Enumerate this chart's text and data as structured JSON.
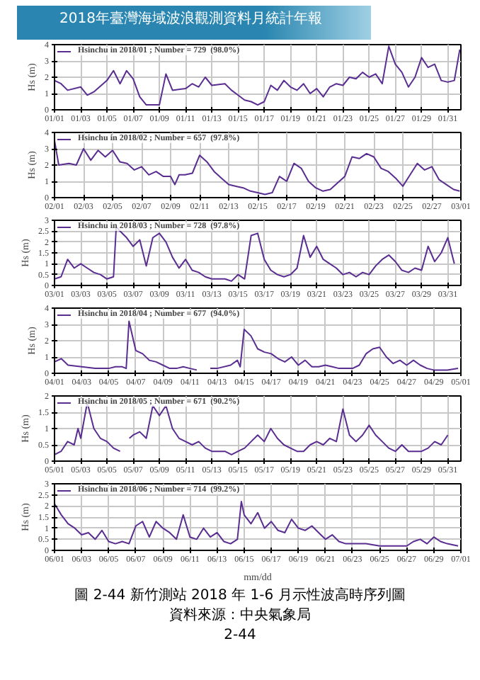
{
  "chart_data": [
    {
      "type": "line",
      "title": "2018年臺灣海域波浪觀測資料月統計年報",
      "ylabel": "Hs (m)",
      "xlim": [
        "2018-01-01",
        "2018-02-01"
      ],
      "ylim": [
        0,
        4
      ],
      "yticks": [
        0,
        1,
        2,
        3,
        4
      ],
      "xticks": [
        {
          "value": "2018-01-01",
          "label": "01/01"
        },
        {
          "value": "2018-01-03",
          "label": "01/03"
        },
        {
          "value": "2018-01-05",
          "label": "01/05"
        },
        {
          "value": "2018-01-07",
          "label": "01/07"
        },
        {
          "value": "2018-01-09",
          "label": "01/09"
        },
        {
          "value": "2018-01-11",
          "label": "01/11"
        },
        {
          "value": "2018-01-13",
          "label": "01/13"
        },
        {
          "value": "2018-01-15",
          "label": "01/15"
        },
        {
          "value": "2018-01-17",
          "label": "01/17"
        },
        {
          "value": "2018-01-19",
          "label": "01/19"
        },
        {
          "value": "2018-01-21",
          "label": "01/21"
        },
        {
          "value": "2018-01-23",
          "label": "01/23"
        },
        {
          "value": "2018-01-25",
          "label": "01/25"
        },
        {
          "value": "2018-01-27",
          "label": "01/27"
        },
        {
          "value": "2018-01-29",
          "label": "01/29"
        },
        {
          "value": "2018-01-31",
          "label": "01/31"
        }
      ],
      "grid": true,
      "legend": "top left",
      "line_style": "solid",
      "series": [
        {
          "name": "Hsinchu in 2018/01 ; Number = 729  (98.0%)",
          "color": "#5a2d91",
          "x": [
            "2018-01-01T00:00",
            "2018-01-01T12:00",
            "2018-01-02T00:00",
            "2018-01-03T00:00",
            "2018-01-03T12:00",
            "2018-01-04T00:00",
            "2018-01-05T00:00",
            "2018-01-05T12:00",
            "2018-01-06T00:00",
            "2018-01-06T12:00",
            "2018-01-07T00:00",
            "2018-01-07T12:00",
            "2018-01-08T00:00",
            "2018-01-08T12:00",
            "2018-01-09T00:00",
            "2018-01-09T12:00",
            "2018-01-10T00:00",
            "2018-01-11T00:00",
            "2018-01-11T12:00",
            "2018-01-12T00:00",
            "2018-01-12T12:00",
            "2018-01-13T00:00",
            "2018-01-14T00:00",
            "2018-01-14T12:00",
            "2018-01-15T00:00",
            "2018-01-15T12:00",
            "2018-01-16T00:00",
            "2018-01-16T12:00",
            "2018-01-17T00:00",
            "2018-01-17T12:00",
            "2018-01-18T00:00",
            "2018-01-18T12:00",
            "2018-01-19T00:00",
            "2018-01-19T12:00",
            "2018-01-20T00:00",
            "2018-01-20T12:00",
            "2018-01-21T00:00",
            "2018-01-21T12:00",
            "2018-01-22T00:00",
            "2018-01-22T12:00",
            "2018-01-23T00:00",
            "2018-01-23T12:00",
            "2018-01-24T00:00",
            "2018-01-24T12:00",
            "2018-01-25T00:00",
            "2018-01-25T12:00",
            "2018-01-26T00:00",
            "2018-01-26T12:00",
            "2018-01-27T00:00",
            "2018-01-27T12:00",
            "2018-01-28T00:00",
            "2018-01-28T12:00",
            "2018-01-29T00:00",
            "2018-01-29T12:00",
            "2018-01-30T00:00",
            "2018-01-30T12:00",
            "2018-01-31T00:00",
            "2018-01-31T12:00",
            "2018-01-31T22:00"
          ],
          "values": [
            1.8,
            1.6,
            1.2,
            1.4,
            0.9,
            1.1,
            1.8,
            2.4,
            1.6,
            2.4,
            1.9,
            0.8,
            0.3,
            0.3,
            0.3,
            2.2,
            1.2,
            1.3,
            1.6,
            1.4,
            2.0,
            1.5,
            1.6,
            1.2,
            0.9,
            0.6,
            0.5,
            0.3,
            0.5,
            1.5,
            1.2,
            1.8,
            1.4,
            1.2,
            1.6,
            1.0,
            1.3,
            0.8,
            1.4,
            1.6,
            1.5,
            2.0,
            1.9,
            2.3,
            2.0,
            2.2,
            1.6,
            3.9,
            2.8,
            2.3,
            1.4,
            2.0,
            3.2,
            2.6,
            2.8,
            1.8,
            1.7,
            1.8,
            3.7
          ]
        }
      ]
    },
    {
      "type": "line",
      "ylabel": "Hs (m)",
      "xlim": [
        "2018-02-01",
        "2018-03-01"
      ],
      "ylim": [
        0,
        4
      ],
      "yticks": [
        0,
        1,
        2,
        3,
        4
      ],
      "xticks": [
        {
          "value": "2018-02-01",
          "label": "02/01"
        },
        {
          "value": "2018-02-03",
          "label": "02/03"
        },
        {
          "value": "2018-02-05",
          "label": "02/05"
        },
        {
          "value": "2018-02-07",
          "label": "02/07"
        },
        {
          "value": "2018-02-09",
          "label": "02/09"
        },
        {
          "value": "2018-02-11",
          "label": "02/11"
        },
        {
          "value": "2018-02-13",
          "label": "02/13"
        },
        {
          "value": "2018-02-15",
          "label": "02/15"
        },
        {
          "value": "2018-02-17",
          "label": "02/17"
        },
        {
          "value": "2018-02-19",
          "label": "02/19"
        },
        {
          "value": "2018-02-21",
          "label": "02/21"
        },
        {
          "value": "2018-02-23",
          "label": "02/23"
        },
        {
          "value": "2018-02-25",
          "label": "02/25"
        },
        {
          "value": "2018-02-27",
          "label": "02/27"
        },
        {
          "value": "2018-03-01",
          "label": "03/01"
        }
      ],
      "grid": true,
      "legend": "top left",
      "line_style": "solid",
      "series": [
        {
          "name": "Hsinchu in 2018/02 ; Number = 657  (97.8%)",
          "color": "#5a2d91",
          "x": [
            "2018-02-01T00:00",
            "2018-02-01T07:00",
            "2018-02-02T00:00",
            "2018-02-02T12:00",
            "2018-02-03T00:00",
            "2018-02-03T12:00",
            "2018-02-04T00:00",
            "2018-02-04T12:00",
            "2018-02-05T00:00",
            "2018-02-05T12:00",
            "2018-02-06T00:00",
            "2018-02-06T12:00",
            "2018-02-07T00:00",
            "2018-02-07T12:00",
            "2018-02-08T00:00",
            "2018-02-08T12:00",
            "2018-02-09T00:00",
            "2018-02-09T07:00",
            "2018-02-09T14:00",
            "2018-02-10T00:00",
            "2018-02-10T12:00",
            "2018-02-11T00:00",
            "2018-02-11T12:00",
            "2018-02-12T00:00",
            "2018-02-12T12:00",
            "2018-02-13T00:00",
            "2018-02-13T12:00",
            "2018-02-14T00:00",
            "2018-02-14T12:00",
            "2018-02-15T00:00",
            "2018-02-15T12:00",
            "2018-02-16T00:00",
            "2018-02-16T12:00",
            "2018-02-17T00:00",
            "2018-02-17T12:00",
            "2018-02-18T00:00",
            "2018-02-18T12:00",
            "2018-02-19T00:00",
            "2018-02-19T12:00",
            "2018-02-20T00:00",
            "2018-02-20T12:00",
            "2018-02-21T00:00",
            "2018-02-21T12:00",
            "2018-02-22T00:00",
            "2018-02-22T12:00",
            "2018-02-23T00:00",
            "2018-02-23T12:00",
            "2018-02-24T00:00",
            "2018-02-24T12:00",
            "2018-02-25T00:00",
            "2018-02-25T12:00",
            "2018-02-26T00:00",
            "2018-02-26T12:00",
            "2018-02-27T00:00",
            "2018-02-27T12:00",
            "2018-02-28T00:00",
            "2018-02-28T12:00",
            "2018-02-28T22:00"
          ],
          "values": [
            3.5,
            2.0,
            2.1,
            2.0,
            3.0,
            2.3,
            2.9,
            2.5,
            2.9,
            2.2,
            2.1,
            1.7,
            1.9,
            1.4,
            1.6,
            1.3,
            1.3,
            0.8,
            1.4,
            1.4,
            1.5,
            2.6,
            2.2,
            1.6,
            1.2,
            0.8,
            0.7,
            0.6,
            0.4,
            0.3,
            0.2,
            0.3,
            1.3,
            1.0,
            2.1,
            1.8,
            1.0,
            0.6,
            0.4,
            0.5,
            0.9,
            1.3,
            2.5,
            2.4,
            2.7,
            2.5,
            1.8,
            1.6,
            1.2,
            0.7,
            1.4,
            2.1,
            1.7,
            1.9,
            1.1,
            0.8,
            0.5,
            0.4
          ]
        }
      ]
    },
    {
      "type": "line",
      "ylabel": "Hs (m)",
      "xlim": [
        "2018-03-01",
        "2018-04-01"
      ],
      "ylim": [
        0,
        3
      ],
      "yticks": [
        0,
        0.5,
        1,
        1.5,
        2,
        2.5,
        3
      ],
      "xticks": [
        {
          "value": "2018-03-01",
          "label": "03/01"
        },
        {
          "value": "2018-03-03",
          "label": "03/03"
        },
        {
          "value": "2018-03-05",
          "label": "03/05"
        },
        {
          "value": "2018-03-07",
          "label": "03/07"
        },
        {
          "value": "2018-03-09",
          "label": "03/09"
        },
        {
          "value": "2018-03-11",
          "label": "03/11"
        },
        {
          "value": "2018-03-13",
          "label": "03/13"
        },
        {
          "value": "2018-03-15",
          "label": "03/15"
        },
        {
          "value": "2018-03-17",
          "label": "03/17"
        },
        {
          "value": "2018-03-19",
          "label": "03/19"
        },
        {
          "value": "2018-03-21",
          "label": "03/21"
        },
        {
          "value": "2018-03-23",
          "label": "03/23"
        },
        {
          "value": "2018-03-25",
          "label": "03/25"
        },
        {
          "value": "2018-03-27",
          "label": "03/27"
        },
        {
          "value": "2018-03-29",
          "label": "03/29"
        },
        {
          "value": "2018-03-31",
          "label": "03/31"
        }
      ],
      "grid": true,
      "legend": "top left",
      "line_style": "solid",
      "series": [
        {
          "name": "Hsinchu in 2018/03 ; Number = 728  (97.8%)",
          "color": "#5a2d91",
          "x": [
            "2018-03-01T00:00",
            "2018-03-01T12:00",
            "2018-03-02T00:00",
            "2018-03-02T12:00",
            "2018-03-03T00:00",
            "2018-03-03T12:00",
            "2018-03-04T00:00",
            "2018-03-04T12:00",
            "2018-03-05T00:00",
            "2018-03-05T12:00",
            "2018-03-05T17:00",
            "2018-03-06T00:00",
            "2018-03-06T12:00",
            "2018-03-07T00:00",
            "2018-03-07T12:00",
            "2018-03-08T00:00",
            "2018-03-08T12:00",
            "2018-03-09T00:00",
            "2018-03-09T12:00",
            "2018-03-10T00:00",
            "2018-03-10T12:00",
            "2018-03-11T00:00",
            "2018-03-11T12:00",
            "2018-03-12T00:00",
            "2018-03-12T12:00",
            "2018-03-13T00:00",
            "2018-03-13T12:00",
            "2018-03-14T00:00",
            "2018-03-14T12:00",
            "2018-03-15T00:00",
            "2018-03-15T12:00",
            "2018-03-16T00:00",
            "2018-03-16T12:00",
            "2018-03-17T00:00",
            "2018-03-17T12:00",
            "2018-03-18T00:00",
            "2018-03-18T12:00",
            "2018-03-19T00:00",
            "2018-03-19T12:00",
            "2018-03-20T00:00",
            "2018-03-20T12:00",
            "2018-03-21T00:00",
            "2018-03-21T12:00",
            "2018-03-22T00:00",
            "2018-03-22T12:00",
            "2018-03-23T00:00",
            "2018-03-23T12:00",
            "2018-03-24T00:00",
            "2018-03-24T12:00",
            "2018-03-25T00:00",
            "2018-03-25T12:00",
            "2018-03-26T00:00",
            "2018-03-26T12:00",
            "2018-03-27T00:00",
            "2018-03-27T12:00",
            "2018-03-28T00:00",
            "2018-03-28T12:00",
            "2018-03-29T00:00",
            "2018-03-29T12:00",
            "2018-03-30T00:00",
            "2018-03-30T12:00",
            "2018-03-31T00:00",
            "2018-03-31T12:00"
          ],
          "values": [
            0.3,
            0.4,
            1.2,
            0.8,
            1.0,
            0.8,
            0.6,
            0.5,
            0.3,
            0.4,
            2.7,
            2.5,
            2.2,
            1.8,
            2.1,
            0.9,
            2.2,
            2.4,
            2.0,
            1.3,
            0.8,
            1.2,
            0.7,
            0.6,
            0.4,
            0.3,
            0.3,
            0.3,
            0.2,
            0.5,
            0.3,
            2.3,
            2.4,
            1.2,
            0.7,
            0.5,
            0.4,
            0.5,
            0.8,
            2.3,
            1.3,
            1.8,
            1.2,
            1.0,
            0.8,
            0.5,
            0.6,
            0.4,
            0.6,
            0.5,
            0.9,
            1.2,
            1.4,
            1.1,
            0.7,
            0.6,
            0.8,
            0.7,
            1.8,
            1.1,
            1.5,
            2.2,
            1.0
          ]
        }
      ]
    },
    {
      "type": "line",
      "ylabel": "Hs (m)",
      "xlim": [
        "2018-04-01",
        "2018-05-01"
      ],
      "ylim": [
        0,
        4
      ],
      "yticks": [
        0,
        1,
        2,
        3,
        4
      ],
      "xticks": [
        {
          "value": "2018-04-01",
          "label": "04/01"
        },
        {
          "value": "2018-04-03",
          "label": "04/03"
        },
        {
          "value": "2018-04-05",
          "label": "04/05"
        },
        {
          "value": "2018-04-07",
          "label": "04/07"
        },
        {
          "value": "2018-04-09",
          "label": "04/09"
        },
        {
          "value": "2018-04-11",
          "label": "04/11"
        },
        {
          "value": "2018-04-13",
          "label": "04/13"
        },
        {
          "value": "2018-04-15",
          "label": "04/15"
        },
        {
          "value": "2018-04-17",
          "label": "04/17"
        },
        {
          "value": "2018-04-19",
          "label": "04/19"
        },
        {
          "value": "2018-04-21",
          "label": "04/21"
        },
        {
          "value": "2018-04-23",
          "label": "04/23"
        },
        {
          "value": "2018-04-25",
          "label": "04/25"
        },
        {
          "value": "2018-04-27",
          "label": "04/27"
        },
        {
          "value": "2018-04-29",
          "label": "04/29"
        },
        {
          "value": "2018-05-01",
          "label": "05/01"
        }
      ],
      "grid": true,
      "legend": "top left",
      "line_style": "solid",
      "series": [
        {
          "name": "Hsinchu in 2018/04 ; Number = 677  (94.0%)",
          "color": "#5a2d91",
          "x": [
            "2018-04-01T00:00",
            "2018-04-01T12:00",
            "2018-04-02T00:00",
            "2018-04-03T00:00",
            "2018-04-04T00:00",
            "2018-04-05T00:00",
            "2018-04-05T12:00",
            "2018-04-06T00:00",
            "2018-04-06T07:00",
            "2018-04-06T12:00",
            "2018-04-07T00:00",
            "2018-04-07T12:00",
            "2018-04-08T00:00",
            "2018-04-08T12:00",
            "2018-04-09T00:00",
            "2018-04-09T12:00",
            "2018-04-10T00:00",
            "2018-04-10T12:00",
            "2018-04-11T00:00",
            "2018-04-11T12:00",
            "2018-04-12T00:00",
            "2018-04-12T12:00",
            "2018-04-13T00:00",
            "2018-04-14T00:00",
            "2018-04-14T12:00",
            "2018-04-14T17:00",
            "2018-04-15T00:00",
            "2018-04-15T12:00",
            "2018-04-16T00:00",
            "2018-04-16T12:00",
            "2018-04-17T00:00",
            "2018-04-17T12:00",
            "2018-04-18T00:00",
            "2018-04-18T12:00",
            "2018-04-19T00:00",
            "2018-04-19T12:00",
            "2018-04-20T00:00",
            "2018-04-20T12:00",
            "2018-04-21T00:00",
            "2018-04-21T12:00",
            "2018-04-22T00:00",
            "2018-04-23T00:00",
            "2018-04-23T12:00",
            "2018-04-24T00:00",
            "2018-04-24T12:00",
            "2018-04-25T00:00",
            "2018-04-25T12:00",
            "2018-04-26T00:00",
            "2018-04-26T12:00",
            "2018-04-27T00:00",
            "2018-04-27T12:00",
            "2018-04-28T00:00",
            "2018-04-28T12:00",
            "2018-04-29T00:00",
            "2018-04-29T12:00",
            "2018-04-30T00:00",
            "2018-04-30T19:00"
          ],
          "values": [
            0.7,
            0.9,
            0.5,
            0.4,
            0.3,
            0.3,
            0.4,
            0.4,
            0.3,
            3.2,
            1.4,
            1.2,
            0.8,
            0.7,
            0.5,
            0.3,
            0.3,
            0.4,
            0.3,
            0.2,
            null,
            0.3,
            0.3,
            0.5,
            0.8,
            0.4,
            2.7,
            2.3,
            1.5,
            1.3,
            1.2,
            0.9,
            0.7,
            1.0,
            0.5,
            0.8,
            0.4,
            0.4,
            0.5,
            0.4,
            0.3,
            0.3,
            0.5,
            1.2,
            1.5,
            1.6,
            1.0,
            0.6,
            0.8,
            0.5,
            0.8,
            0.5,
            0.3,
            0.2,
            0.2,
            0.2,
            0.3
          ]
        }
      ]
    },
    {
      "type": "line",
      "ylabel": "Hs (m)",
      "xlim": [
        "2018-05-01",
        "2018-06-01"
      ],
      "ylim": [
        0,
        2
      ],
      "yticks": [
        0,
        0.5,
        1,
        1.5,
        2
      ],
      "xticks": [
        {
          "value": "2018-05-01",
          "label": "05/01"
        },
        {
          "value": "2018-05-03",
          "label": "05/03"
        },
        {
          "value": "2018-05-05",
          "label": "05/05"
        },
        {
          "value": "2018-05-07",
          "label": "05/07"
        },
        {
          "value": "2018-05-09",
          "label": "05/09"
        },
        {
          "value": "2018-05-11",
          "label": "05/11"
        },
        {
          "value": "2018-05-13",
          "label": "05/13"
        },
        {
          "value": "2018-05-15",
          "label": "05/15"
        },
        {
          "value": "2018-05-17",
          "label": "05/17"
        },
        {
          "value": "2018-05-19",
          "label": "05/19"
        },
        {
          "value": "2018-05-21",
          "label": "05/21"
        },
        {
          "value": "2018-05-23",
          "label": "05/23"
        },
        {
          "value": "2018-05-25",
          "label": "05/25"
        },
        {
          "value": "2018-05-27",
          "label": "05/27"
        },
        {
          "value": "2018-05-29",
          "label": "05/29"
        },
        {
          "value": "2018-05-31",
          "label": "05/31"
        }
      ],
      "grid": true,
      "legend": "top left",
      "line_style": "solid",
      "series": [
        {
          "name": "Hsinchu in 2018/05 ; Number = 671  (90.2%)",
          "color": "#5a2d91",
          "x": [
            "2018-05-01T00:00",
            "2018-05-01T12:00",
            "2018-05-02T00:00",
            "2018-05-02T12:00",
            "2018-05-02T19:00",
            "2018-05-03T00:00",
            "2018-05-03T12:00",
            "2018-05-04T00:00",
            "2018-05-04T12:00",
            "2018-05-05T00:00",
            "2018-05-05T12:00",
            "2018-05-06T00:00",
            "2018-05-06T12:00",
            "2018-05-06T17:00",
            "2018-05-07T00:00",
            "2018-05-07T12:00",
            "2018-05-08T00:00",
            "2018-05-08T12:00",
            "2018-05-09T00:00",
            "2018-05-09T12:00",
            "2018-05-10T00:00",
            "2018-05-10T12:00",
            "2018-05-11T00:00",
            "2018-05-11T12:00",
            "2018-05-12T00:00",
            "2018-05-12T12:00",
            "2018-05-13T00:00",
            "2018-05-13T12:00",
            "2018-05-14T00:00",
            "2018-05-14T12:00",
            "2018-05-15T00:00",
            "2018-05-15T12:00",
            "2018-05-16T00:00",
            "2018-05-16T12:00",
            "2018-05-17T00:00",
            "2018-05-17T12:00",
            "2018-05-18T00:00",
            "2018-05-18T12:00",
            "2018-05-19T00:00",
            "2018-05-19T12:00",
            "2018-05-20T00:00",
            "2018-05-20T12:00",
            "2018-05-21T00:00",
            "2018-05-21T12:00",
            "2018-05-22T00:00",
            "2018-05-22T12:00",
            "2018-05-23T00:00",
            "2018-05-23T12:00",
            "2018-05-24T00:00",
            "2018-05-24T12:00",
            "2018-05-25T00:00",
            "2018-05-25T12:00",
            "2018-05-26T00:00",
            "2018-05-26T12:00",
            "2018-05-27T00:00",
            "2018-05-27T12:00",
            "2018-05-28T00:00",
            "2018-05-28T12:00",
            "2018-05-29T00:00",
            "2018-05-29T12:00",
            "2018-05-30T00:00",
            "2018-05-30T12:00",
            "2018-05-31T00:00"
          ],
          "values": [
            0.2,
            0.3,
            0.6,
            0.5,
            1.0,
            0.7,
            1.8,
            1.0,
            0.7,
            0.6,
            0.4,
            0.3,
            null,
            0.7,
            0.8,
            0.9,
            0.7,
            1.7,
            1.4,
            1.7,
            1.0,
            0.7,
            0.6,
            0.5,
            0.6,
            0.4,
            0.3,
            0.3,
            0.3,
            0.2,
            0.3,
            0.4,
            0.6,
            0.8,
            0.6,
            1.0,
            0.7,
            0.5,
            0.4,
            0.3,
            0.3,
            0.5,
            0.6,
            0.5,
            0.7,
            0.6,
            1.6,
            0.8,
            0.6,
            0.8,
            1.1,
            0.8,
            0.6,
            0.4,
            0.3,
            0.5,
            0.3,
            0.3,
            0.3,
            0.4,
            0.6,
            0.5,
            0.8
          ]
        }
      ]
    },
    {
      "type": "line",
      "ylabel": "Hs (m)",
      "xlabel": "mm/dd",
      "xlim": [
        "2018-06-01",
        "2018-07-01"
      ],
      "ylim": [
        0,
        3
      ],
      "yticks": [
        0,
        0.5,
        1,
        1.5,
        2,
        2.5,
        3
      ],
      "xticks": [
        {
          "value": "2018-06-01",
          "label": "06/01"
        },
        {
          "value": "2018-06-03",
          "label": "06/03"
        },
        {
          "value": "2018-06-05",
          "label": "06/05"
        },
        {
          "value": "2018-06-07",
          "label": "06/07"
        },
        {
          "value": "2018-06-09",
          "label": "06/09"
        },
        {
          "value": "2018-06-11",
          "label": "06/11"
        },
        {
          "value": "2018-06-13",
          "label": "06/13"
        },
        {
          "value": "2018-06-15",
          "label": "06/15"
        },
        {
          "value": "2018-06-17",
          "label": "06/17"
        },
        {
          "value": "2018-06-19",
          "label": "06/19"
        },
        {
          "value": "2018-06-21",
          "label": "06/21"
        },
        {
          "value": "2018-06-23",
          "label": "06/23"
        },
        {
          "value": "2018-06-25",
          "label": "06/25"
        },
        {
          "value": "2018-06-27",
          "label": "06/27"
        },
        {
          "value": "2018-06-29",
          "label": "06/29"
        },
        {
          "value": "2018-07-01",
          "label": "07/01"
        }
      ],
      "grid": true,
      "legend": "top left",
      "line_style": "solid",
      "annotations": [
        "圖 2-44 新竹測站 2018 年 1-6 月示性波高時序列圖",
        "資料來源：中央氣象局",
        "2-44"
      ],
      "series": [
        {
          "name": "Hsinchu in 2018/06 ; Number = 714  (99.2%)",
          "color": "#5a2d91",
          "x": [
            "2018-06-01T00:00",
            "2018-06-01T12:00",
            "2018-06-02T00:00",
            "2018-06-02T12:00",
            "2018-06-03T00:00",
            "2018-06-03T12:00",
            "2018-06-04T00:00",
            "2018-06-04T12:00",
            "2018-06-05T00:00",
            "2018-06-05T12:00",
            "2018-06-06T00:00",
            "2018-06-06T12:00",
            "2018-06-07T00:00",
            "2018-06-07T12:00",
            "2018-06-08T00:00",
            "2018-06-08T12:00",
            "2018-06-09T00:00",
            "2018-06-09T12:00",
            "2018-06-10T00:00",
            "2018-06-10T12:00",
            "2018-06-11T00:00",
            "2018-06-11T12:00",
            "2018-06-12T00:00",
            "2018-06-12T12:00",
            "2018-06-13T00:00",
            "2018-06-13T12:00",
            "2018-06-14T00:00",
            "2018-06-14T12:00",
            "2018-06-14T19:00",
            "2018-06-15T00:00",
            "2018-06-15T12:00",
            "2018-06-16T00:00",
            "2018-06-16T12:00",
            "2018-06-17T00:00",
            "2018-06-17T12:00",
            "2018-06-18T00:00",
            "2018-06-18T12:00",
            "2018-06-19T00:00",
            "2018-06-19T12:00",
            "2018-06-20T00:00",
            "2018-06-20T12:00",
            "2018-06-21T00:00",
            "2018-06-21T12:00",
            "2018-06-22T00:00",
            "2018-06-22T12:00",
            "2018-06-23T00:00",
            "2018-06-24T00:00",
            "2018-06-25T00:00",
            "2018-06-26T00:00",
            "2018-06-27T00:00",
            "2018-06-27T12:00",
            "2018-06-28T00:00",
            "2018-06-28T12:00",
            "2018-06-29T00:00",
            "2018-06-29T12:00",
            "2018-06-30T00:00",
            "2018-06-30T19:00"
          ],
          "values": [
            2.1,
            1.6,
            1.2,
            1.0,
            0.7,
            0.8,
            0.5,
            0.9,
            0.4,
            0.3,
            0.4,
            0.3,
            1.1,
            1.3,
            0.6,
            1.3,
            1.0,
            0.8,
            0.5,
            1.6,
            0.6,
            0.5,
            1.0,
            0.6,
            0.8,
            0.4,
            0.3,
            0.5,
            2.2,
            1.6,
            1.2,
            1.7,
            1.0,
            1.3,
            0.9,
            0.8,
            1.4,
            1.0,
            0.9,
            1.1,
            0.8,
            0.5,
            0.7,
            0.4,
            0.3,
            0.3,
            0.3,
            0.2,
            0.2,
            0.2,
            0.4,
            0.5,
            0.3,
            0.6,
            0.4,
            0.3,
            0.2
          ]
        }
      ]
    }
  ]
}
